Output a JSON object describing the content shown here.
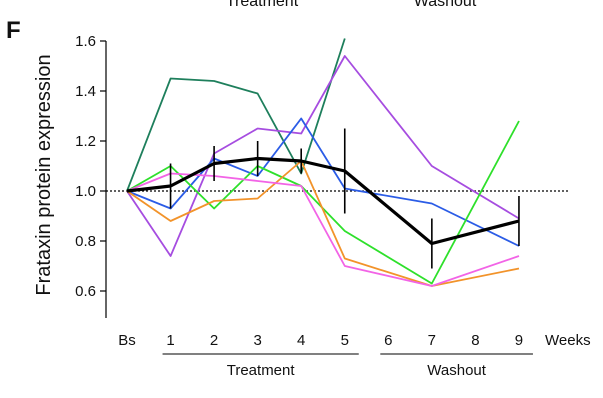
{
  "panel_label": "F",
  "top_labels": {
    "treatment": "Treatment",
    "washout": "Washout"
  },
  "chart_data": {
    "type": "line",
    "ylabel": "Frataxin protein expression",
    "x_categories": [
      "Bs",
      "1",
      "2",
      "3",
      "4",
      "5",
      "6",
      "7",
      "8",
      "9"
    ],
    "x_unit_label": "Weeks",
    "ylim": [
      0.5,
      1.6
    ],
    "yticks": [
      "1.6",
      "1.4",
      "1.2",
      "1.0",
      "0.8",
      "0.6"
    ],
    "ytick_values": [
      1.6,
      1.4,
      1.2,
      1.0,
      0.8,
      0.6
    ],
    "reference_line": 1.0,
    "groups": [
      {
        "label": "Treatment",
        "from": "1",
        "to": "5"
      },
      {
        "label": "Washout",
        "from": "6",
        "to": "9"
      }
    ],
    "series": [
      {
        "color": "#1e7f5c",
        "points": [
          [
            0,
            1.0
          ],
          [
            1,
            1.45
          ],
          [
            2,
            1.44
          ],
          [
            3,
            1.39
          ],
          [
            4,
            1.07
          ],
          [
            5,
            1.61
          ]
        ]
      },
      {
        "color": "#a64de0",
        "points": [
          [
            0,
            1.0
          ],
          [
            1,
            0.74
          ],
          [
            2,
            1.15
          ],
          [
            3,
            1.25
          ],
          [
            4,
            1.23
          ],
          [
            5,
            1.54
          ],
          [
            7,
            1.1
          ],
          [
            9,
            0.89
          ]
        ]
      },
      {
        "color": "#2b5ce6",
        "points": [
          [
            0,
            1.0
          ],
          [
            1,
            0.93
          ],
          [
            2,
            1.13
          ],
          [
            3,
            1.06
          ],
          [
            4,
            1.29
          ],
          [
            5,
            1.01
          ],
          [
            7,
            0.95
          ],
          [
            9,
            0.78
          ]
        ]
      },
      {
        "color": "#2ee02b",
        "points": [
          [
            0,
            1.0
          ],
          [
            1,
            1.1
          ],
          [
            2,
            0.93
          ],
          [
            3,
            1.1
          ],
          [
            4,
            1.02
          ],
          [
            5,
            0.84
          ],
          [
            7,
            0.63
          ],
          [
            9,
            1.28
          ]
        ]
      },
      {
        "color": "#f2932a",
        "points": [
          [
            0,
            1.0
          ],
          [
            1,
            0.88
          ],
          [
            2,
            0.96
          ],
          [
            3,
            0.97
          ],
          [
            4,
            1.12
          ],
          [
            5,
            0.73
          ],
          [
            7,
            0.62
          ],
          [
            9,
            0.69
          ]
        ]
      },
      {
        "color": "#f264e6",
        "points": [
          [
            0,
            1.0
          ],
          [
            1,
            1.07
          ],
          [
            2,
            1.06
          ],
          [
            3,
            1.04
          ],
          [
            4,
            1.02
          ],
          [
            5,
            0.7
          ],
          [
            7,
            0.62
          ],
          [
            9,
            0.74
          ]
        ]
      }
    ],
    "mean": {
      "color": "#000000",
      "points": [
        [
          0,
          1.0
        ],
        [
          1,
          1.02
        ],
        [
          2,
          1.11
        ],
        [
          3,
          1.13
        ],
        [
          4,
          1.12
        ],
        [
          5,
          1.08
        ],
        [
          7,
          0.79
        ],
        [
          9,
          0.88
        ]
      ],
      "error": [
        [
          1,
          0.09
        ],
        [
          2,
          0.07
        ],
        [
          3,
          0.07
        ],
        [
          4,
          0.05
        ],
        [
          5,
          0.17
        ],
        [
          7,
          0.1
        ],
        [
          9,
          0.1
        ]
      ]
    }
  }
}
